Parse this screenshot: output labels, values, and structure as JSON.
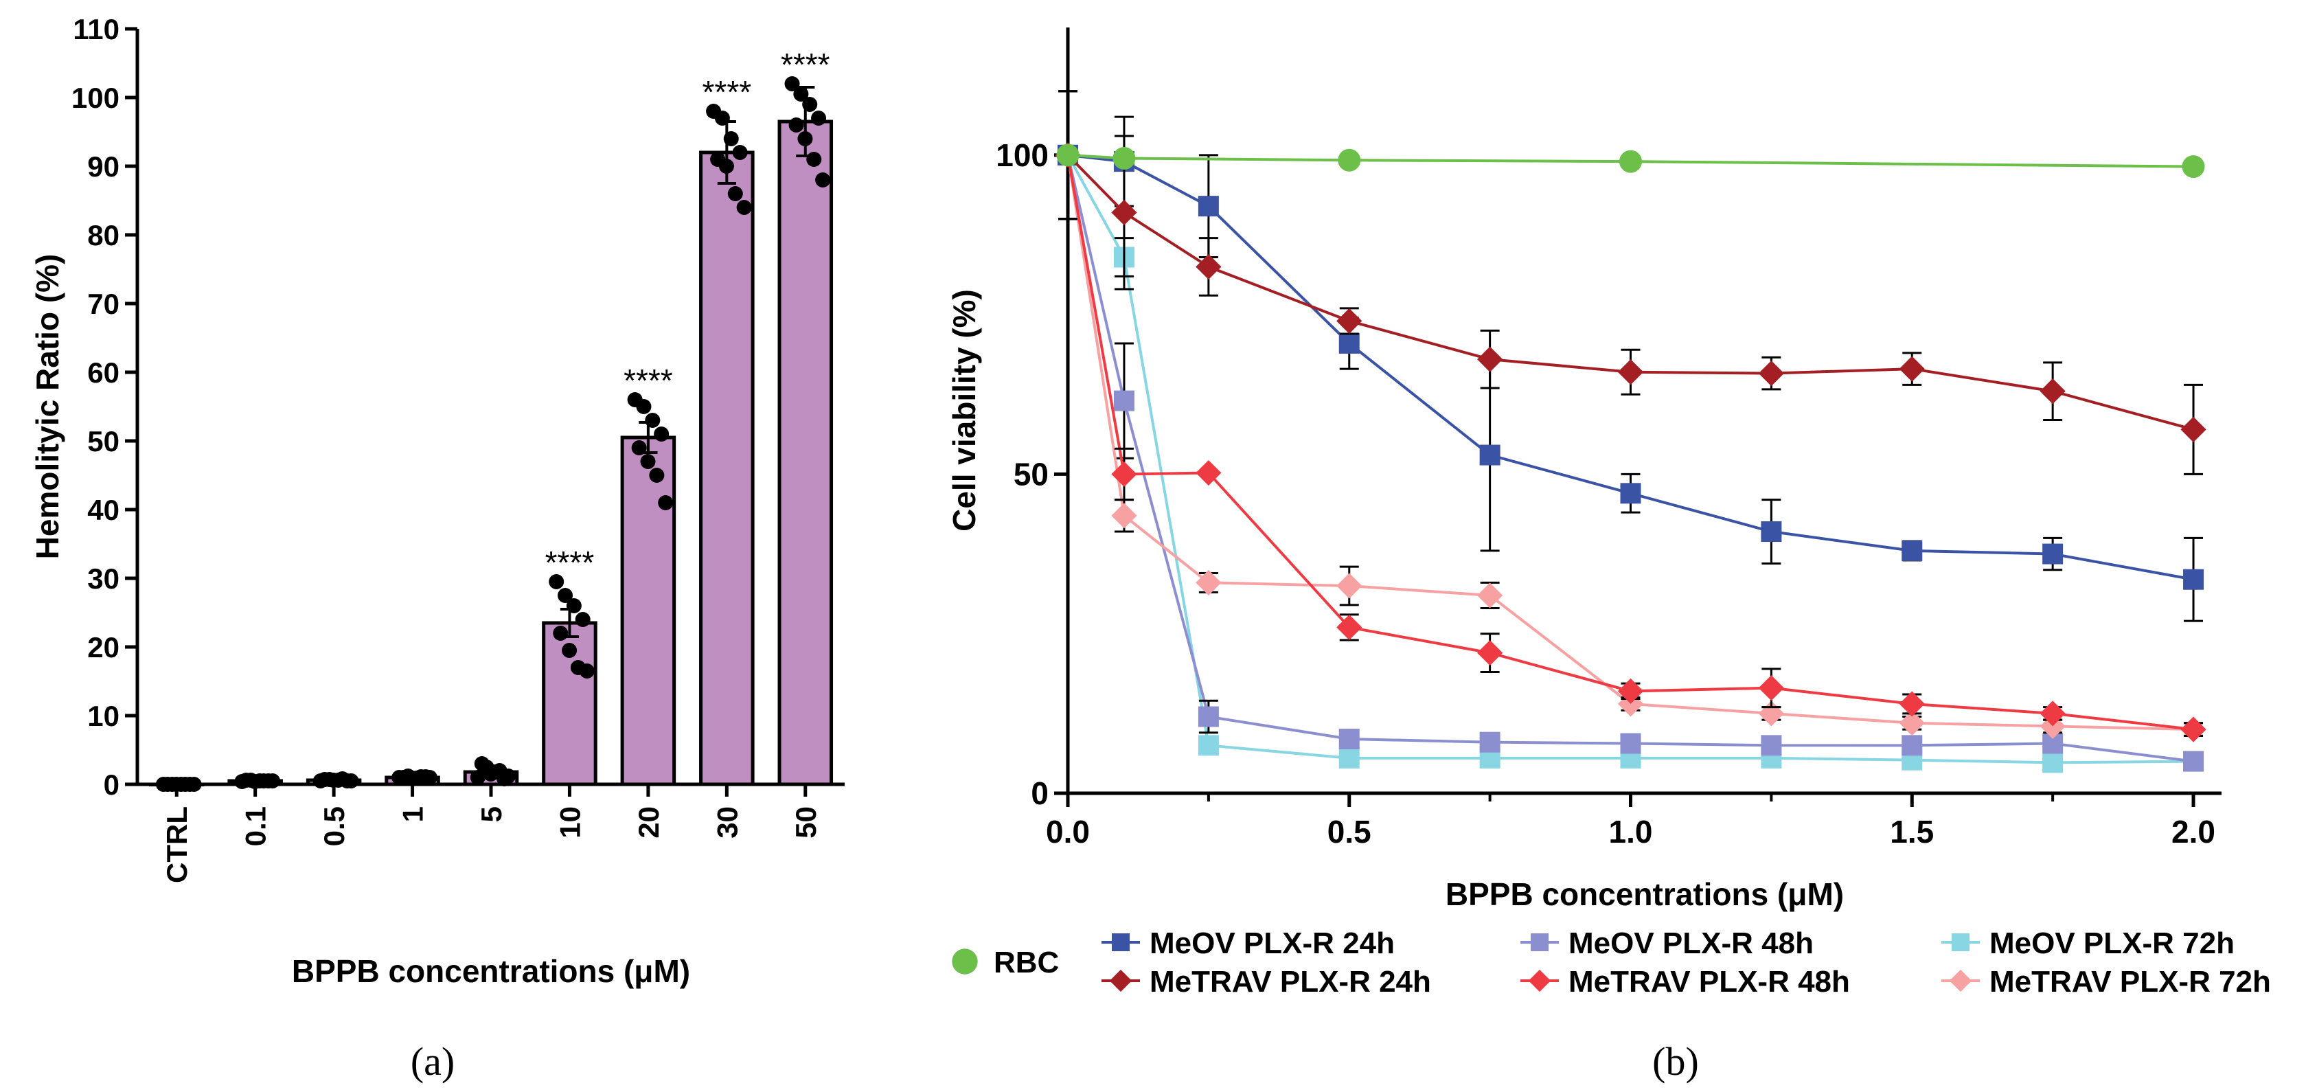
{
  "chart_data": [
    {
      "panel": "(a)",
      "type": "bar",
      "ylabel": "Hemolityic Ratio (%)",
      "xlabel": "BPPB concentrations (μM)",
      "categories": [
        "CTRL",
        "0.1",
        "0.5",
        "1",
        "5",
        "10",
        "20",
        "30",
        "50"
      ],
      "values": [
        0,
        0.5,
        0.6,
        1.0,
        1.8,
        23.5,
        50.5,
        92.0,
        96.5
      ],
      "error": [
        0.3,
        0.3,
        0.3,
        0.3,
        0.8,
        2.0,
        2.2,
        4.5,
        5.0
      ],
      "significance": [
        "",
        "",
        "",
        "",
        "",
        "****",
        "****",
        "****",
        "****"
      ],
      "points": [
        [
          0,
          0,
          0,
          0,
          0,
          0,
          0,
          0
        ],
        [
          0.4,
          0.6,
          0.5,
          0.5,
          0.6,
          0.4,
          0.5,
          0.5
        ],
        [
          0.5,
          0.7,
          0.6,
          0.5,
          0.7,
          0.6,
          0.8,
          0.5
        ],
        [
          1.0,
          1.2,
          0.9,
          1.1,
          1.0,
          0.9,
          1.1,
          1.0
        ],
        [
          1.0,
          2.5,
          1.8,
          0.8,
          3.0,
          1.5,
          2.0,
          1.2
        ],
        [
          29.5,
          27.5,
          26.0,
          24.0,
          22.0,
          19.5,
          17.0,
          16.5
        ],
        [
          56.0,
          55.0,
          53.0,
          51.0,
          49.0,
          47.0,
          45.0,
          41.0
        ],
        [
          98.0,
          97.0,
          94.0,
          92.0,
          91.0,
          90.0,
          86.0,
          84.0
        ],
        [
          102.0,
          100.5,
          99.0,
          97.0,
          96.0,
          94.0,
          91.0,
          88.0
        ]
      ],
      "ylim": [
        0,
        110
      ],
      "yticks": [
        0,
        10,
        20,
        30,
        40,
        50,
        60,
        70,
        80,
        90,
        100,
        110
      ],
      "bar_color": "#c08fc1"
    },
    {
      "panel": "(b)",
      "type": "line",
      "ylabel": "Cell viability (%)",
      "xlabel": "BPPB concentrations (μM)",
      "xlim": [
        0,
        2.05
      ],
      "ylim": [
        0,
        120
      ],
      "xticks": [
        "0.0",
        "0.5",
        "1.0",
        "1.5",
        "2.0"
      ],
      "yticks": [
        "0",
        "50",
        "100"
      ],
      "series": [
        {
          "name": "RBC",
          "marker": "circle",
          "color": "#6cc04a",
          "x": [
            0,
            0.1,
            0.5,
            1.0,
            2.0
          ],
          "y": [
            100,
            99.5,
            99.2,
            99.0,
            98.2
          ],
          "err": [
            0,
            0,
            0,
            0,
            0
          ]
        },
        {
          "name": "MeOV PLX-R 24h",
          "marker": "square",
          "color": "#3a53a4",
          "x": [
            0,
            0.1,
            0.25,
            0.5,
            0.75,
            1.0,
            1.25,
            1.5,
            1.75,
            2.0
          ],
          "y": [
            100,
            99,
            92,
            70.5,
            53,
            47,
            41,
            38,
            37.5,
            33.5
          ],
          "err": [
            10,
            7,
            8,
            4,
            15,
            3,
            5,
            1.5,
            2.5,
            6.5
          ]
        },
        {
          "name": "MeTRAV PLX-R 24h",
          "marker": "diamond",
          "color": "#a31f24",
          "x": [
            0,
            0.1,
            0.25,
            0.5,
            0.75,
            1.0,
            1.25,
            1.5,
            1.75,
            2.0
          ],
          "y": [
            100,
            91,
            82.5,
            74,
            68,
            66,
            65.8,
            66.5,
            63,
            57
          ],
          "err": [
            10,
            12,
            4.5,
            2,
            4.5,
            3.5,
            2.5,
            2.5,
            4.5,
            7
          ]
        },
        {
          "name": "MeOV PLX-R 48h",
          "marker": "square",
          "color": "#8c8fcf",
          "x": [
            0,
            0.1,
            0.25,
            0.5,
            0.75,
            1.0,
            1.25,
            1.5,
            1.75,
            2.0
          ],
          "y": [
            100,
            61.5,
            12,
            8.5,
            8,
            7.8,
            7.5,
            7.5,
            7.8,
            5
          ],
          "err": [
            10,
            9,
            2.5,
            1,
            1,
            1,
            1,
            1,
            1,
            1
          ]
        },
        {
          "name": "MeTRAV PLX-R 48h",
          "marker": "diamond",
          "color": "#ee3b43",
          "x": [
            0,
            0.1,
            0.25,
            0.5,
            0.75,
            1.0,
            1.25,
            1.5,
            1.75,
            2.0
          ],
          "y": [
            100,
            50,
            50.2,
            26,
            22,
            16,
            16.5,
            14,
            12.5,
            10
          ],
          "err": [
            10,
            4,
            0,
            2,
            3,
            1.2,
            3,
            1.5,
            1,
            1
          ]
        },
        {
          "name": "MeOV PLX-R 72h",
          "marker": "square",
          "color": "#88d6e3",
          "x": [
            0,
            0.1,
            0.25,
            0.5,
            0.75,
            1.0,
            1.25,
            1.5,
            1.75,
            2.0
          ],
          "y": [
            100,
            84,
            7.5,
            5.5,
            5.5,
            5.5,
            5.5,
            5.2,
            4.8,
            5
          ],
          "err": [
            10,
            3,
            1,
            0.8,
            0.8,
            0.8,
            0.8,
            0.8,
            0.8,
            0.8
          ]
        },
        {
          "name": "MeTRAV PLX-R 72h",
          "marker": "diamond",
          "color": "#f7a1a3",
          "x": [
            0,
            0.1,
            0.25,
            0.5,
            0.75,
            1.0,
            1.25,
            1.5,
            1.75,
            2.0
          ],
          "y": [
            100,
            43.5,
            33,
            32.5,
            31,
            14,
            12.5,
            11,
            10.5,
            10
          ],
          "err": [
            10,
            2.5,
            1.5,
            3,
            2,
            1,
            1,
            1,
            1,
            1
          ]
        }
      ],
      "legend_position": "bottom"
    }
  ]
}
